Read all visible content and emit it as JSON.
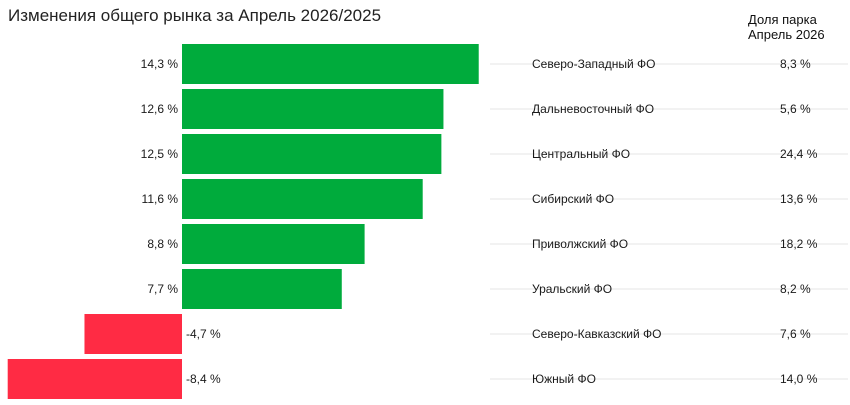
{
  "title": "Изменения общего рынка за Апрель 2026/2025",
  "share_header": [
    "Доля парка",
    "Апрель 2026"
  ],
  "colors": {
    "positive": "#00ab3c",
    "negative": "#ff2b44",
    "gridline": "#e6e6e6"
  },
  "chart_data": {
    "type": "bar",
    "orientation": "horizontal",
    "title": "Изменения общего рынка за Апрель 2026/2025",
    "categories": [
      "Северо-Западный ФО",
      "Дальневосточный ФО",
      "Центральный ФО",
      "Сибирский ФО",
      "Приволжский ФО",
      "Уральский ФО",
      "Северо-Кавказский ФО",
      "Южный ФО"
    ],
    "values": [
      14.3,
      12.6,
      12.5,
      11.6,
      8.8,
      7.7,
      -4.7,
      -8.4
    ],
    "value_labels": [
      "14,3 %",
      "12,6 %",
      "12,5 %",
      "11,6 %",
      "8,8 %",
      "7,7 %",
      "-4,7 %",
      "-8,4 %"
    ],
    "share_values": [
      8.3,
      5.6,
      24.4,
      13.6,
      18.2,
      8.2,
      7.6,
      14.0
    ],
    "share_labels": [
      "8,3 %",
      "5,6 %",
      "24,4 %",
      "13,6 %",
      "18,2 %",
      "8,2 %",
      "7,6 %",
      "14,0 %"
    ],
    "legend": "none",
    "grid": false
  }
}
